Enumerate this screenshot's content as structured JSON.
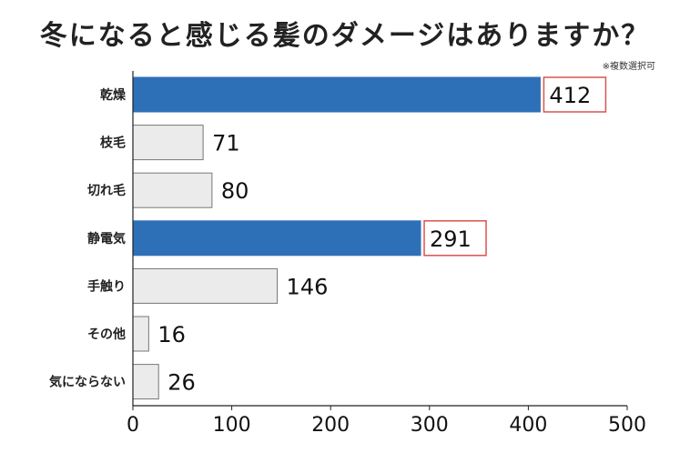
{
  "chart_data": {
    "type": "bar",
    "orientation": "horizontal",
    "title": "冬になると感じる髪のダメージはありますか？",
    "note": "※複数選択可",
    "categories": [
      "乾燥",
      "枝毛",
      "切れ毛",
      "静電気",
      "手触り",
      "その他",
      "気にならない"
    ],
    "values": [
      412,
      71,
      80,
      291,
      146,
      16,
      26
    ],
    "highlighted": [
      true,
      false,
      false,
      true,
      false,
      false,
      false
    ],
    "xlim": [
      0,
      500
    ],
    "xticks": [
      "0",
      "100",
      "200",
      "300",
      "400",
      "500"
    ],
    "colors": {
      "highlight": "#2e70b8",
      "normal": "#ebebeb",
      "normal_border": "#777777",
      "label_box_border": "#d9534f"
    },
    "grid": false,
    "legend": "none"
  }
}
